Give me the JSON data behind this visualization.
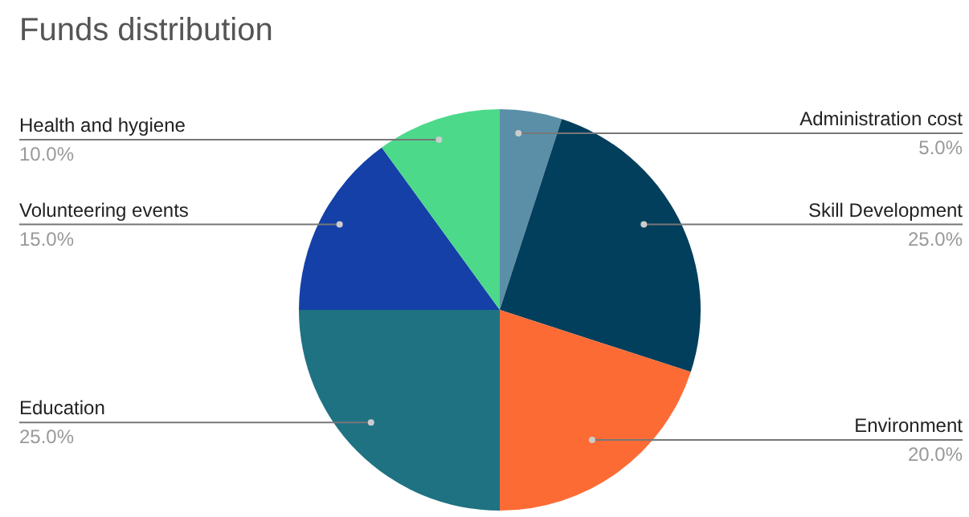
{
  "chart_data": {
    "type": "pie",
    "title": "Funds distribution",
    "categories": [
      "Administration cost",
      "Skill Development",
      "Environment",
      "Education",
      "Volunteering events",
      "Health and hygiene"
    ],
    "values": [
      5,
      25,
      20,
      25,
      15,
      10
    ],
    "value_labels": [
      "5.0%",
      "25.0%",
      "20.0%",
      "25.0%",
      "15.0%",
      "10.0%"
    ],
    "colors": [
      "#5b8fa8",
      "#023f5c",
      "#fd6b35",
      "#1f7282",
      "#1440a8",
      "#4cd98a"
    ],
    "legend": false
  }
}
